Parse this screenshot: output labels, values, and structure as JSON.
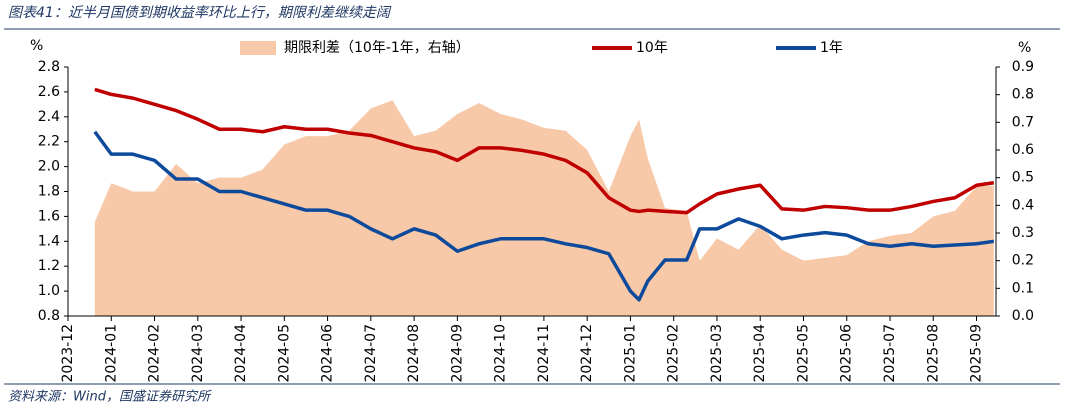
{
  "chart_data": {
    "type": "line",
    "title": "图表41：近半月国债到期收益率环比上行，期限利差继续走阔",
    "source": "资料来源：Wind，国盛证券研究所",
    "y_unit": "%",
    "y2_unit": "%",
    "x": [
      0.62,
      1,
      1.5,
      2,
      2.5,
      3,
      3.5,
      4,
      4.5,
      5,
      5.5,
      6,
      6.5,
      7,
      7.5,
      8,
      8.5,
      9,
      9.5,
      10,
      10.5,
      11,
      11.5,
      12,
      12.5,
      13,
      13.2,
      13.4,
      13.8,
      14.3,
      14.6,
      15,
      15.5,
      16,
      16.5,
      17,
      17.5,
      18,
      18.5,
      19,
      19.5,
      20,
      20.5,
      21,
      21.4
    ],
    "xlim": [
      0,
      21.45
    ],
    "xticks": [
      {
        "value": 0,
        "label": "2023-12"
      },
      {
        "value": 1,
        "label": "2024-01"
      },
      {
        "value": 2,
        "label": "2024-02"
      },
      {
        "value": 3,
        "label": "2024-03"
      },
      {
        "value": 4,
        "label": "2024-04"
      },
      {
        "value": 5,
        "label": "2024-05"
      },
      {
        "value": 6,
        "label": "2024-06"
      },
      {
        "value": 7,
        "label": "2024-07"
      },
      {
        "value": 8,
        "label": "2024-08"
      },
      {
        "value": 9,
        "label": "2024-09"
      },
      {
        "value": 10,
        "label": "2024-10"
      },
      {
        "value": 11,
        "label": "2024-11"
      },
      {
        "value": 12,
        "label": "2024-12"
      },
      {
        "value": 13,
        "label": "2025-01"
      },
      {
        "value": 14,
        "label": "2025-02"
      },
      {
        "value": 15,
        "label": "2025-03"
      },
      {
        "value": 16,
        "label": "2025-04"
      },
      {
        "value": 17,
        "label": "2025-05"
      },
      {
        "value": 18,
        "label": "2025-06"
      },
      {
        "value": 19,
        "label": "2025-07"
      },
      {
        "value": 20,
        "label": "2025-08"
      },
      {
        "value": 21,
        "label": "2025-09"
      }
    ],
    "ylim": [
      0.8,
      2.8
    ],
    "yticks": [
      0.8,
      {
        "value": 1,
        "label": "1.0"
      },
      1.2,
      1.4,
      1.6,
      1.8,
      {
        "value": 2,
        "label": "2.0"
      },
      2.2,
      2.4,
      2.6,
      2.8
    ],
    "y2lim": [
      0,
      0.9
    ],
    "y2ticks": [
      {
        "value": 0,
        "label": "0.0"
      },
      0.1,
      0.2,
      0.3,
      0.4,
      0.5,
      0.6,
      0.7,
      0.8,
      0.9
    ],
    "series": [
      {
        "name": "期限利差（10年-1年，右轴）",
        "type": "area",
        "axis": "y2",
        "color": "#f8c9a8",
        "values": [
          0.34,
          0.48,
          0.45,
          0.45,
          0.55,
          0.48,
          0.5,
          0.5,
          0.53,
          0.62,
          0.65,
          0.65,
          0.67,
          0.75,
          0.78,
          0.65,
          0.67,
          0.73,
          0.77,
          0.73,
          0.71,
          0.68,
          0.67,
          0.6,
          0.45,
          0.65,
          0.71,
          0.57,
          0.39,
          0.38,
          0.2,
          0.28,
          0.24,
          0.33,
          0.24,
          0.2,
          0.21,
          0.22,
          0.27,
          0.29,
          0.3,
          0.36,
          0.38,
          0.47,
          0.47
        ]
      },
      {
        "name": "10年",
        "type": "line",
        "color": "#c00000",
        "values": [
          2.62,
          2.58,
          2.55,
          2.5,
          2.45,
          2.38,
          2.3,
          2.3,
          2.28,
          2.32,
          2.3,
          2.3,
          2.27,
          2.25,
          2.2,
          2.15,
          2.12,
          2.05,
          2.15,
          2.15,
          2.13,
          2.1,
          2.05,
          1.95,
          1.75,
          1.65,
          1.64,
          1.65,
          1.64,
          1.63,
          1.7,
          1.78,
          1.82,
          1.85,
          1.66,
          1.65,
          1.68,
          1.67,
          1.65,
          1.65,
          1.68,
          1.72,
          1.75,
          1.85,
          1.87
        ]
      },
      {
        "name": "1年",
        "type": "line",
        "color": "#0e4a9c",
        "values": [
          2.28,
          2.1,
          2.1,
          2.05,
          1.9,
          1.9,
          1.8,
          1.8,
          1.75,
          1.7,
          1.65,
          1.65,
          1.6,
          1.5,
          1.42,
          1.5,
          1.45,
          1.32,
          1.38,
          1.42,
          1.42,
          1.42,
          1.38,
          1.35,
          1.3,
          1.0,
          0.93,
          1.08,
          1.25,
          1.25,
          1.5,
          1.5,
          1.58,
          1.52,
          1.42,
          1.45,
          1.47,
          1.45,
          1.38,
          1.36,
          1.38,
          1.36,
          1.37,
          1.38,
          1.4
        ]
      }
    ]
  }
}
